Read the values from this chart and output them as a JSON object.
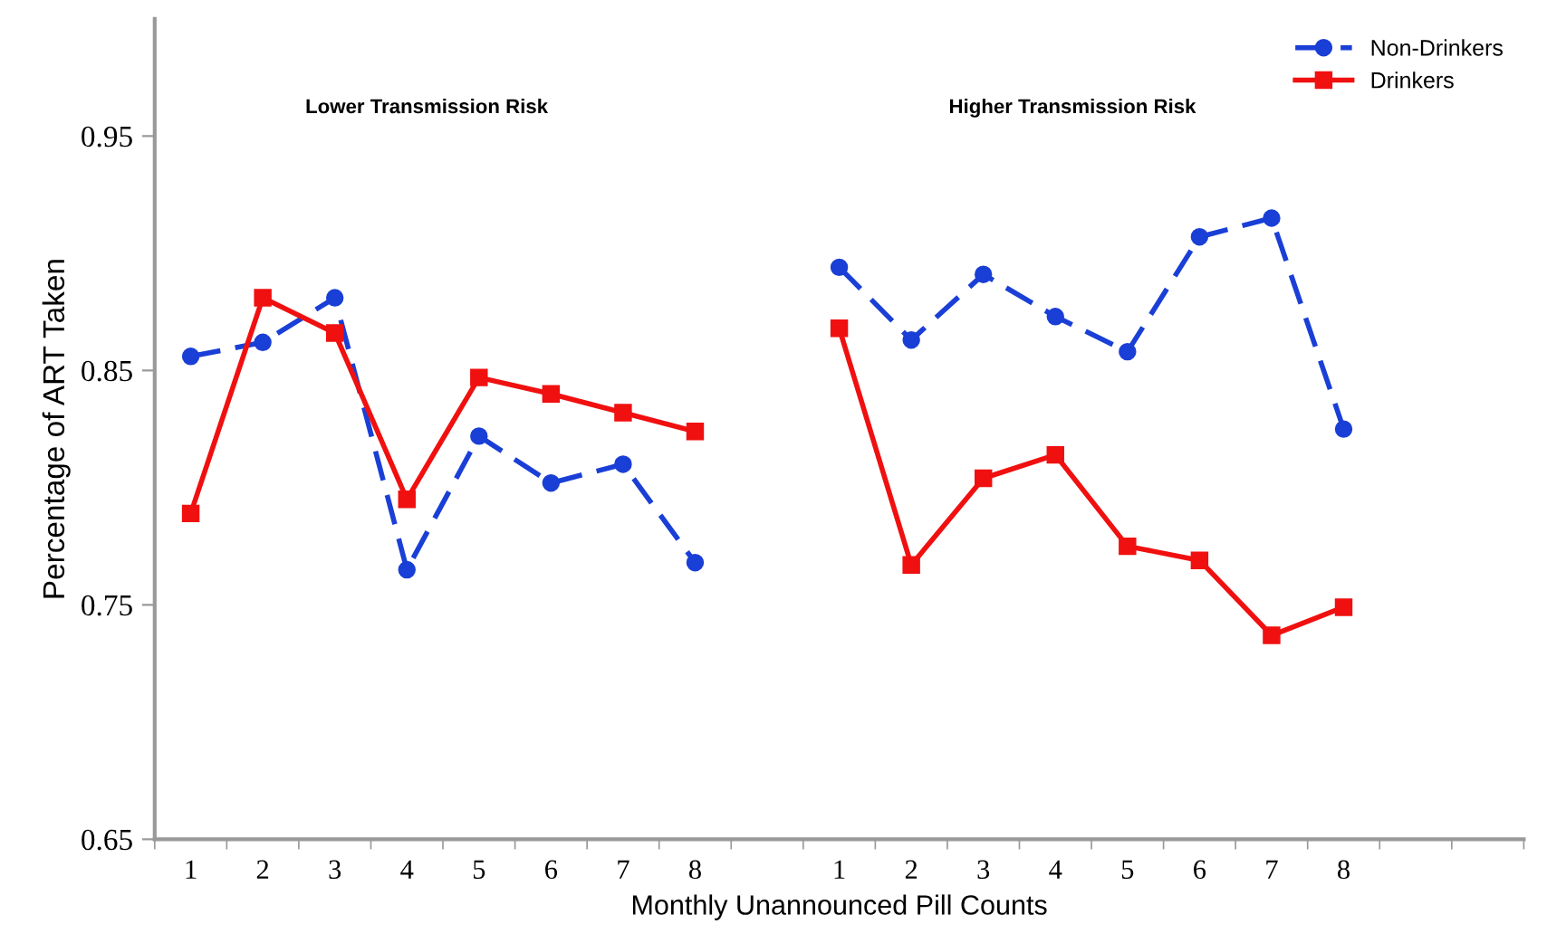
{
  "chart_data": {
    "type": "line",
    "xlabel": "Monthly Unannounced Pill Counts",
    "ylabel": "Percentage of ART Taken",
    "categories": [
      "1",
      "2",
      "3",
      "4",
      "5",
      "6",
      "7",
      "8",
      null,
      "1",
      "2",
      "3",
      "4",
      "5",
      "6",
      "7",
      "8",
      null,
      null
    ],
    "series": [
      {
        "name": "Non-Drinkers",
        "color": "#1a3fd6",
        "marker": "circle",
        "line_style": "dashed",
        "values": [
          0.856,
          0.862,
          0.881,
          0.765,
          0.822,
          0.802,
          0.81,
          0.768,
          null,
          0.894,
          0.863,
          0.891,
          0.873,
          0.858,
          0.907,
          0.915,
          0.825,
          null,
          null
        ]
      },
      {
        "name": "Drinkers",
        "color": "#f01010",
        "marker": "square",
        "line_style": "solid",
        "values": [
          0.789,
          0.881,
          0.866,
          0.795,
          0.847,
          0.84,
          0.832,
          0.824,
          null,
          0.868,
          0.767,
          0.804,
          0.814,
          0.775,
          0.769,
          0.737,
          0.749,
          null,
          null
        ]
      }
    ],
    "ylim": [
      0.65,
      1.0
    ],
    "yticks": [
      0.65,
      0.75,
      0.85,
      0.95
    ],
    "annotations": [
      "Lower Transmission Risk",
      "Higher Transmission Risk"
    ],
    "grid": false,
    "legend": "top right"
  }
}
